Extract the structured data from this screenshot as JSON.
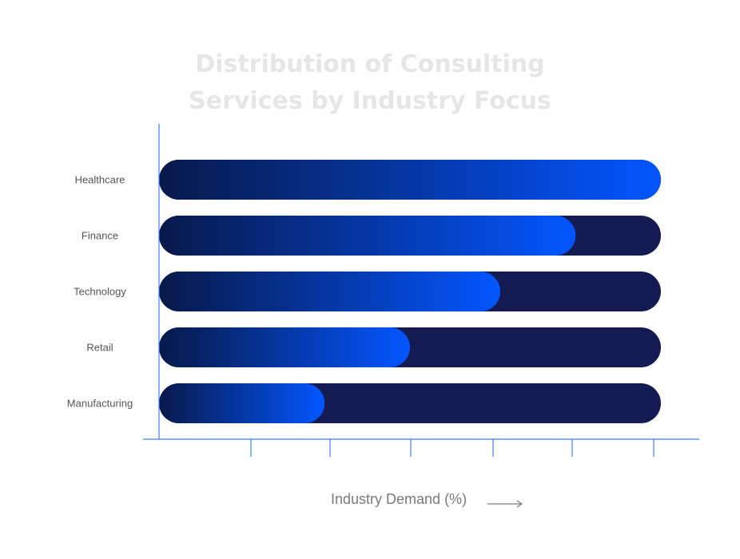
{
  "chart_data": {
    "type": "bar",
    "orientation": "horizontal",
    "title_lines": [
      "Distribution of Consulting",
      "Services by Industry Focus"
    ],
    "xlabel": "Industry Demand (%)",
    "categories": [
      "Healthcare",
      "Finance",
      "Technology",
      "Retail",
      "Manufacturing"
    ],
    "values": [
      100,
      83,
      68,
      50,
      33
    ],
    "xlim": [
      0,
      100
    ],
    "tick_count": 6,
    "grid": false,
    "colors": {
      "track": "#141a52",
      "fill_start": "#07194a",
      "fill_end": "#0356ff",
      "axis": "#3f7fff",
      "title": "#e6e6e6",
      "label": "#555555",
      "xlabel": "#7a7a7a"
    }
  }
}
